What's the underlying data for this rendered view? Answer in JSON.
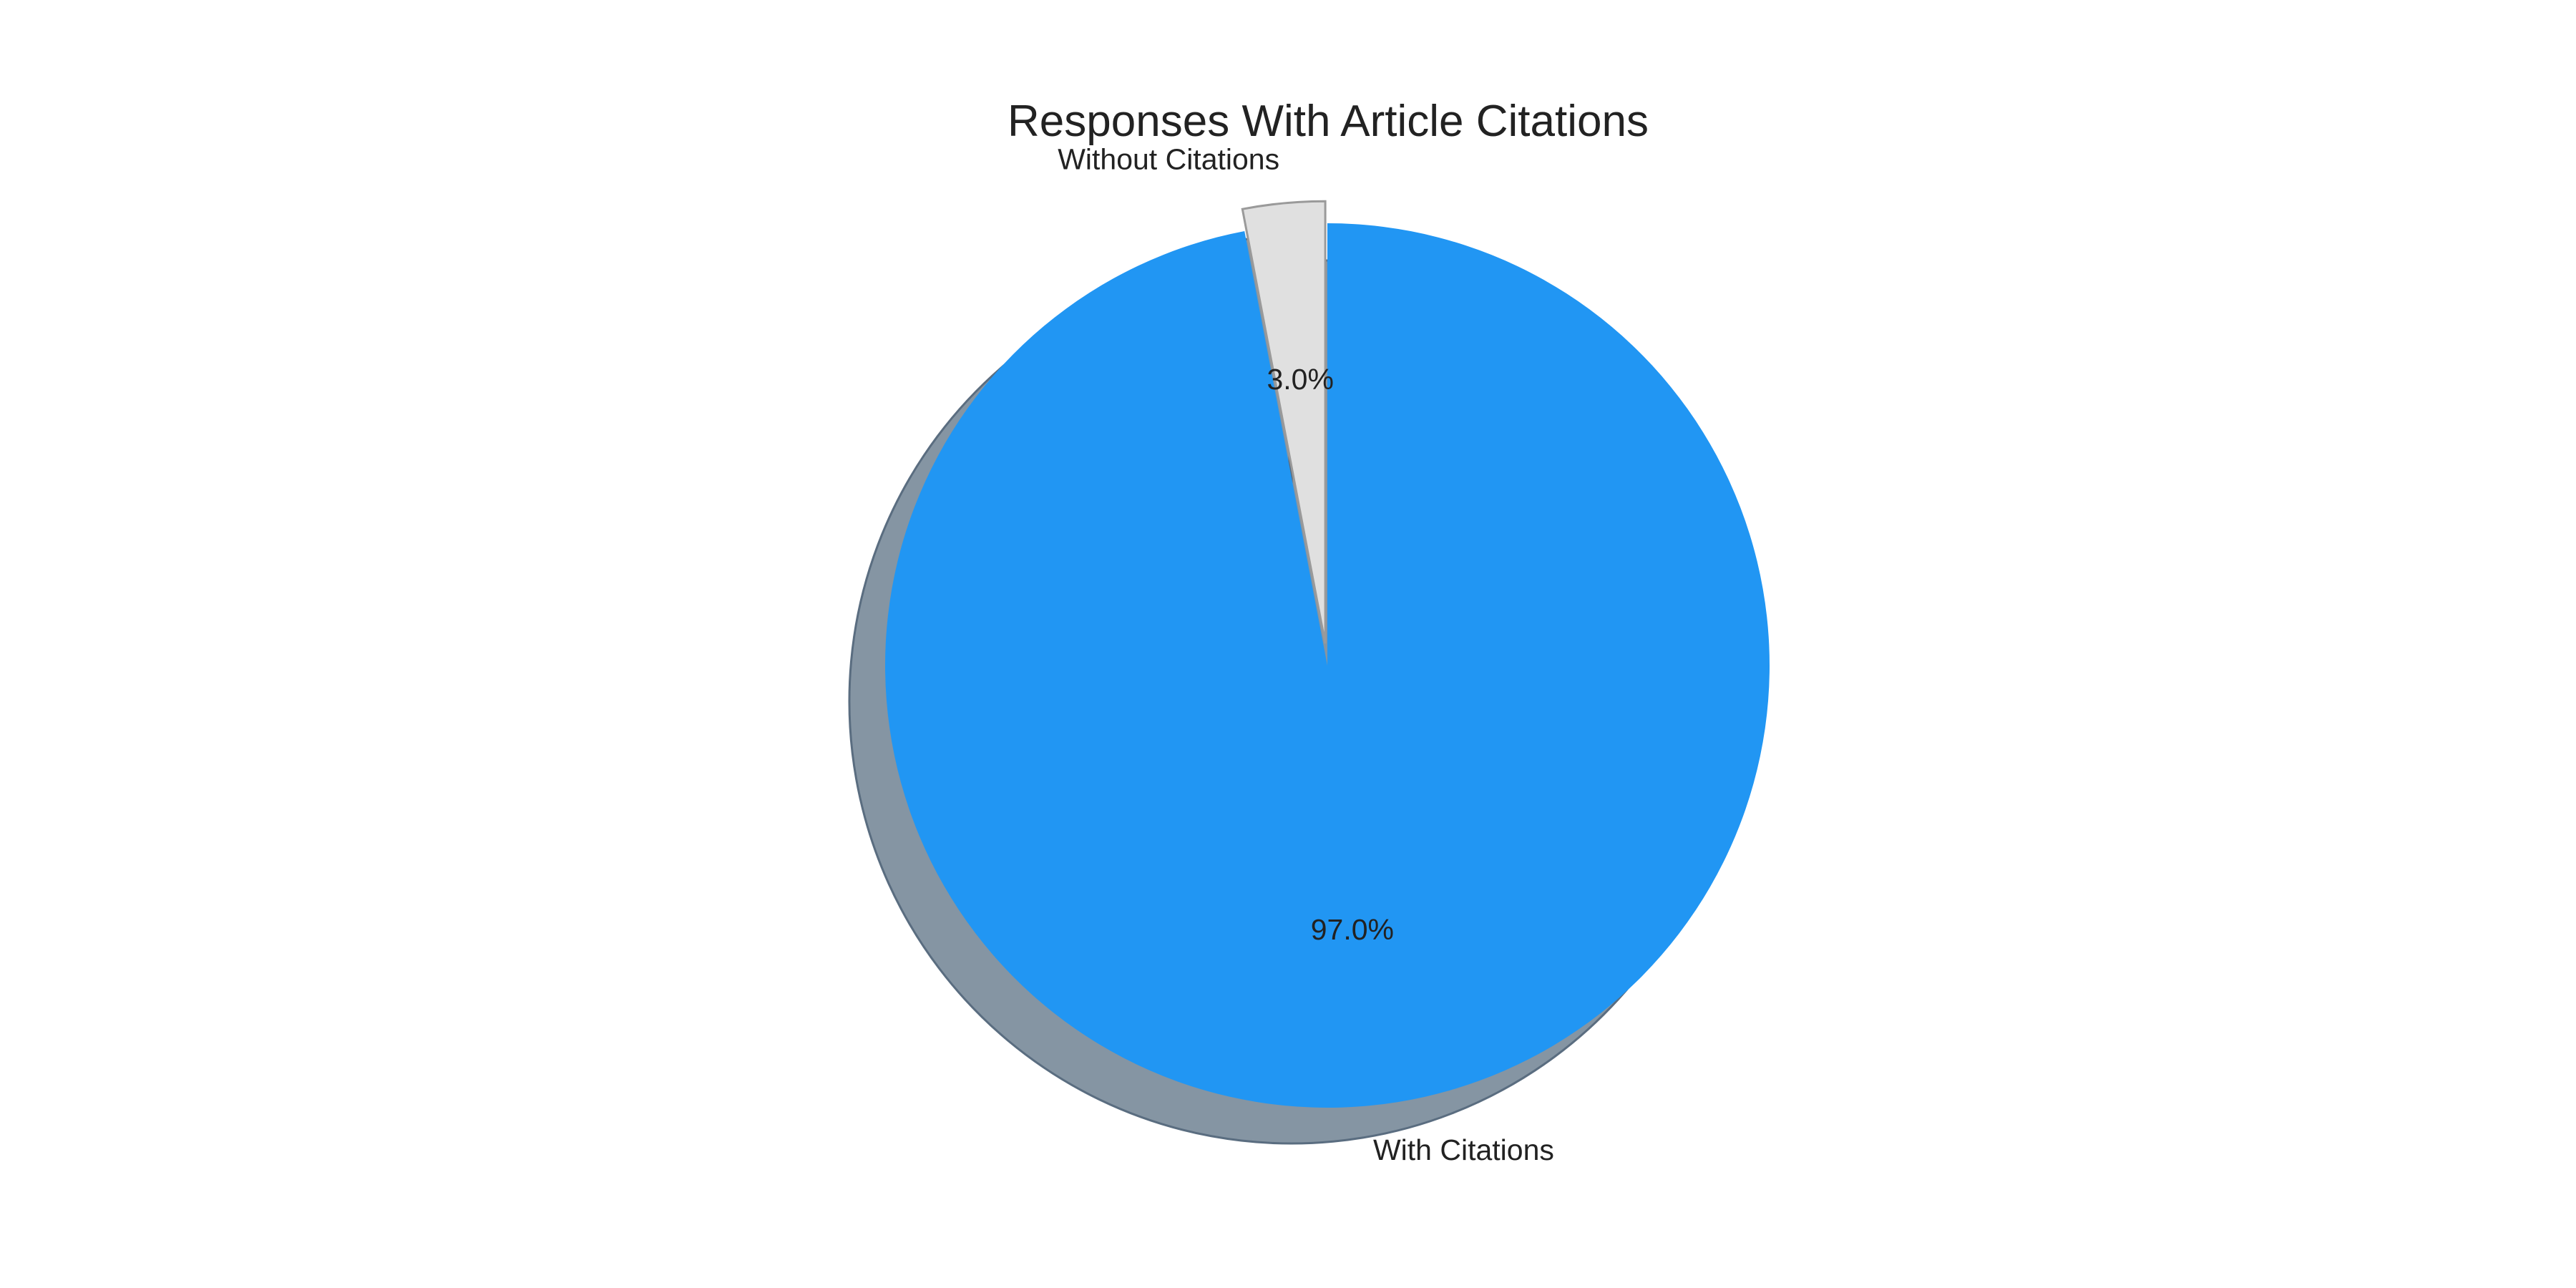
{
  "chart_data": {
    "type": "pie",
    "title": "Responses With Article Citations",
    "slices": [
      {
        "name": "Without Citations",
        "value": 3.0,
        "label": "3.0%",
        "color": "#e0e0e0",
        "exploded": true
      },
      {
        "name": "With Citations",
        "value": 97.0,
        "label": "97.0%",
        "color": "#2196f3",
        "exploded": false
      }
    ],
    "start_angle": "top, counter-clockwise",
    "shadow": true,
    "shadow_color": "#8595a3",
    "legend": false
  }
}
